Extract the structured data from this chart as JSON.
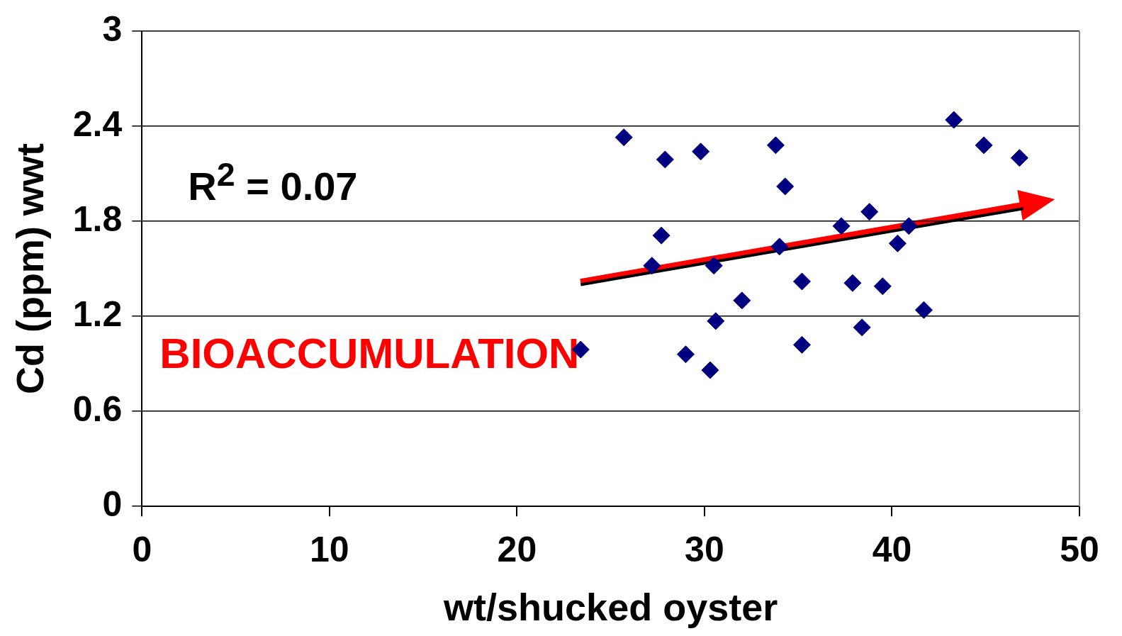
{
  "chart_data": {
    "type": "scatter",
    "xlabel": "wt/shucked oyster",
    "ylabel": "Cd (ppm) wwt",
    "xlim": [
      0,
      50
    ],
    "xticks": [
      0,
      10,
      20,
      30,
      40,
      50
    ],
    "ylim": [
      0,
      3
    ],
    "yticks": [
      0,
      {
        "value": 0.6,
        "label": "0.6"
      },
      {
        "value": 1.2,
        "label": "1.2"
      },
      {
        "value": 1.8,
        "label": "1.8"
      },
      {
        "value": 2.4,
        "label": "2.4"
      },
      3
    ],
    "grid": "y",
    "legend": false,
    "annotations": [
      "R$^{2}$ = 0.07",
      "BIOACCUMULATION"
    ],
    "series": [
      {
        "color": "#000080",
        "marker": "diamond",
        "x": [
          23.4,
          25.7,
          27.9,
          27.7,
          27.2,
          29.0,
          29.8,
          30.3,
          30.5,
          30.6,
          32.0,
          33.8,
          34.3,
          34.0,
          35.2,
          35.2,
          37.3,
          37.9,
          38.8,
          38.4,
          39.5,
          40.3,
          40.9,
          41.7,
          43.3,
          44.9,
          46.8
        ],
        "values": [
          0.99,
          2.33,
          2.19,
          1.71,
          1.52,
          0.96,
          2.24,
          0.86,
          1.52,
          1.17,
          1.3,
          2.28,
          2.02,
          1.64,
          1.42,
          1.02,
          1.77,
          1.41,
          1.86,
          1.13,
          1.39,
          1.66,
          1.77,
          1.24,
          2.44,
          2.28,
          2.2
        ]
      },
      {
        "type": "line",
        "marker": "none",
        "color": "#000000",
        "x": [
          23.4,
          47.0
        ],
        "values": [
          1.4,
          1.88
        ]
      }
    ]
  }
}
